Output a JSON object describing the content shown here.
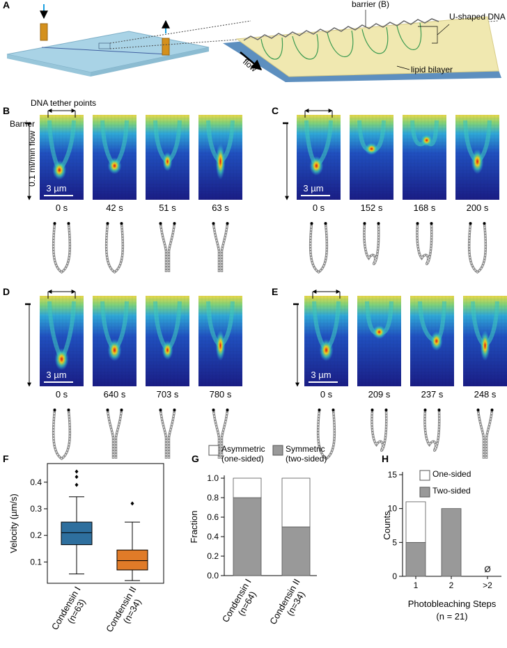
{
  "panels": {
    "A": {
      "label": "A",
      "barrier": "barrier (B)",
      "dna": "U-shaped DNA",
      "bilayer": "lipid bilayer",
      "flow": "flow"
    },
    "B": {
      "label": "B",
      "tether": "DNA tether points",
      "barrier": "Barrier",
      "flow": "0.1 ml/min flow",
      "scale": "3 µm",
      "times": [
        "0 s",
        "42 s",
        "51 s",
        "63 s"
      ]
    },
    "C": {
      "label": "C",
      "scale": "3 µm",
      "times": [
        "0 s",
        "152 s",
        "168 s",
        "200 s"
      ]
    },
    "D": {
      "label": "D",
      "scale": "3 µm",
      "times": [
        "0 s",
        "640 s",
        "703 s",
        "780 s"
      ]
    },
    "E": {
      "label": "E",
      "scale": "3 µm",
      "times": [
        "0 s",
        "209 s",
        "237 s",
        "248 s"
      ]
    }
  },
  "chart_data": [
    {
      "type": "box",
      "panel_label": "F",
      "ylabel": "Velocity (µm/s)",
      "categories": [
        "Condensin I",
        "Condensin II"
      ],
      "n_labels": [
        "(n=63)",
        "(n=34)"
      ],
      "colors": [
        "#2e6f9e",
        "#e07b28"
      ],
      "boxes": [
        {
          "whislo": 0.055,
          "q1": 0.165,
          "med": 0.21,
          "q3": 0.25,
          "whishi": 0.345,
          "fliers": [
            0.39,
            0.42,
            0.44
          ]
        },
        {
          "whislo": 0.03,
          "q1": 0.07,
          "med": 0.105,
          "q3": 0.145,
          "whishi": 0.25,
          "fliers": [
            0.32
          ]
        }
      ],
      "ylim": [
        0.02,
        0.47
      ],
      "yticks": [
        0.1,
        0.2,
        0.3,
        0.4
      ]
    },
    {
      "type": "stacked_bar",
      "panel_label": "G",
      "ylabel": "Fraction",
      "categories": [
        "Condensin I",
        "Condensin II"
      ],
      "n_labels": [
        "(n=64)",
        "(n=34)"
      ],
      "series": [
        {
          "name": "Symmetric (two-sided)",
          "color": "#999999",
          "values": [
            0.8,
            0.5
          ]
        },
        {
          "name": "Asymmetric (one-sided)",
          "color": "#ffffff",
          "values": [
            0.2,
            0.5
          ]
        }
      ],
      "ylim": [
        0,
        1
      ],
      "yticks": [
        {
          "value": 0,
          "label": "0.0"
        },
        0.2,
        0.4,
        0.6,
        0.8,
        {
          "value": 1,
          "label": "1.0"
        }
      ]
    },
    {
      "type": "stacked_bar",
      "panel_label": "H",
      "ylabel": "Counts",
      "xlabel": "Photobleaching Steps",
      "subtitle": "(n = 21)",
      "categories": [
        "1",
        "2",
        ">2"
      ],
      "series": [
        {
          "name": "Two-sided",
          "color": "#999999",
          "values": [
            5,
            10,
            0
          ]
        },
        {
          "name": "One-sided",
          "color": "#ffffff",
          "values": [
            6,
            0,
            0
          ]
        }
      ],
      "annotation": "Ø",
      "ylim": [
        0,
        15
      ],
      "yticks": [
        0,
        5,
        10,
        15
      ]
    }
  ]
}
